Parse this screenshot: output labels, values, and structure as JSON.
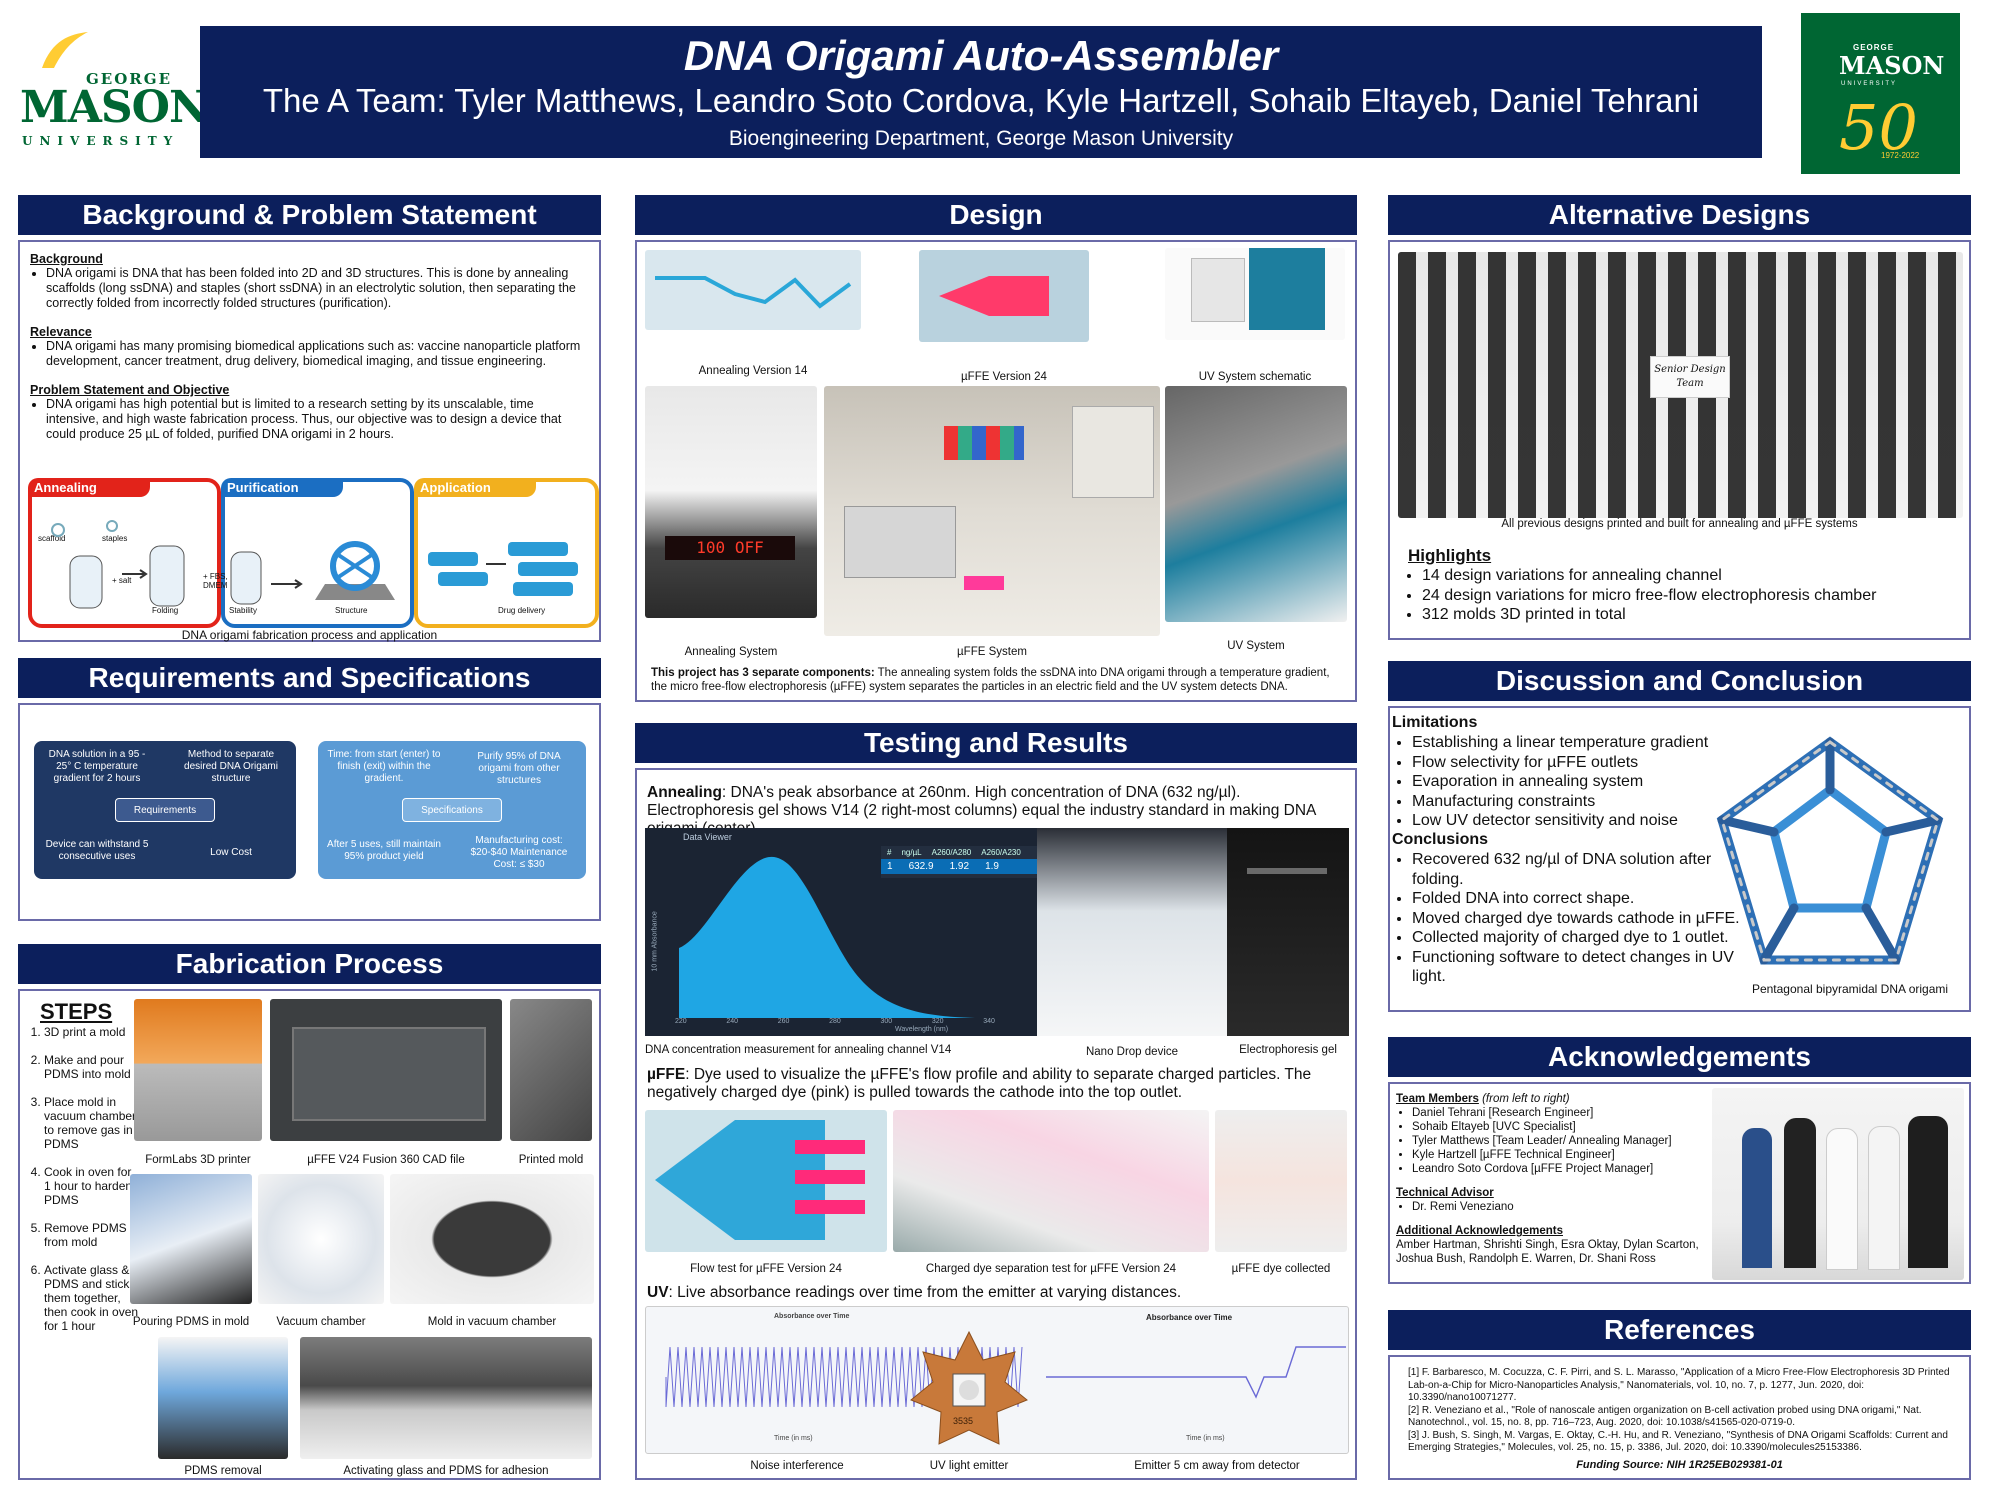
{
  "header": {
    "title": "DNA Origami Auto-Assembler",
    "team": "The A Team: Tyler Matthews, Leandro Soto Cordova, Kyle Hartzell, Sohaib Eltayeb, Daniel Tehrani",
    "department": "Bioengineering Department, George Mason University"
  },
  "logo_left": {
    "george": "GEORGE",
    "mason": "MASON",
    "university": "UNIVERSITY"
  },
  "logo_right": {
    "george": "GEORGE",
    "mason": "MASON",
    "university": "UNIVERSITY",
    "fifty": "50",
    "years": "1972-2022"
  },
  "background": {
    "title": "Background & Problem Statement",
    "bg_head": "Background",
    "bg_text": "DNA origami is DNA that has been folded into 2D and 3D structures. This is done by annealing scaffolds (long ssDNA) and staples (short ssDNA) in an electrolytic solution, then separating the correctly folded from incorrectly folded structures (purification).",
    "rel_head": "Relevance",
    "rel_text": "DNA origami has many promising biomedical applications such as: vaccine nanoparticle platform development, cancer treatment, drug delivery, biomedical imaging, and tissue engineering.",
    "ps_head": "Problem Statement and Objective",
    "ps_text": "DNA origami has high potential but is limited to a research setting by its unscalable, time intensive, and high waste fabrication process. Thus, our objective was to design a device that could produce 25 µL of folded, purified DNA origami in 2 hours.",
    "panels": [
      "Annealing",
      "Purification",
      "Application"
    ],
    "panel_labels": [
      "scaffold",
      "staples",
      "+ salt",
      "Folding",
      "+ FBS, DMEM",
      "Stability",
      "Structure",
      "Drug delivery"
    ],
    "caption": "DNA origami fabrication process and application"
  },
  "requirements": {
    "title": "Requirements and Specifications",
    "req_center": "Requirements",
    "req_items": [
      "DNA solution in a 95 - 25° C temperature gradient for 2 hours",
      "Method to separate desired DNA Origami structure",
      "Device can withstand 5 consecutive uses",
      "Low Cost"
    ],
    "spec_center": "Specifications",
    "spec_items": [
      "Time: from start (enter) to finish (exit) within the gradient.",
      "Purify 95% of DNA origami from other structures",
      "After 5 uses, still maintain 95% product yield",
      "Manufacturing cost: $20-$40 Maintenance Cost: ≤ $30"
    ]
  },
  "fabrication": {
    "title": "Fabrication Process",
    "steps_head": "STEPS",
    "steps": [
      "3D print a mold",
      "Make and pour PDMS into mold",
      "Place mold in vacuum chamber to remove gas in PDMS",
      "Cook in oven for 1 hour to harden PDMS",
      "Remove PDMS from mold",
      "Activate glass & PDMS and stick them together, then cook in oven for 1 hour"
    ],
    "captions": [
      "FormLabs 3D printer",
      "µFFE V24 Fusion 360 CAD file",
      "Printed mold",
      "Pouring PDMS in mold",
      "Vacuum chamber",
      "Mold in vacuum chamber",
      "PDMS removal",
      "Activating glass and PDMS for adhesion"
    ]
  },
  "design": {
    "title": "Design",
    "captions": [
      "Annealing Version 14",
      "µFFE Version 24",
      "UV System schematic",
      "Annealing System",
      "µFFE System",
      "UV System"
    ],
    "hotplate_display": "100  OFF",
    "note_bold": "This project has 3 separate components:",
    "note_text": " The annealing system folds the ssDNA into DNA origami through a temperature gradient, the micro free-flow electrophoresis (µFFE) system separates the particles in an electric field and the UV system detects DNA."
  },
  "testing": {
    "title": "Testing and Results",
    "annealing_bold": "Annealing",
    "annealing_text": ": DNA's peak absorbance at 260nm. High concentration of DNA (632 ng/µl). Electrophoresis gel shows V14 (2 right-most columns) equal the industry standard in making DNA origami (center).",
    "nanodrop": {
      "app": "Data Viewer",
      "cols": [
        "#",
        "ng/µL",
        "A260/A280",
        "A260/A230"
      ],
      "row": [
        "1",
        "632.9",
        "1.92",
        "1.9"
      ],
      "xlabel": "Wavelength (nm)",
      "ylabel": "10 mm Absorbance",
      "ticks": [
        "220",
        "240",
        "260",
        "280",
        "300",
        "320",
        "340"
      ]
    },
    "annealing_captions": [
      "DNA concentration measurement for annealing channel V14",
      "Nano Drop device",
      "Electrophoresis gel"
    ],
    "uffe_bold": "µFFE",
    "uffe_text": ": Dye used to visualize the µFFE's flow profile and ability to separate charged particles. The negatively charged dye (pink) is pulled towards the cathode into the top outlet.",
    "uffe_captions": [
      "Flow test for µFFE Version 24",
      "Charged dye separation test for µFFE Version 24",
      "µFFE dye collected"
    ],
    "uv_bold": "UV",
    "uv_text": ": Live absorbance readings over time from the emitter at varying distances.",
    "uv_chart_title": "Absorbance over Time",
    "uv_chart_xlabel": "Time (in ms)",
    "led_code": "3535",
    "uv_captions": [
      "Noise interference",
      "UV light emitter",
      "Emitter 5 cm away from detector"
    ]
  },
  "alternative": {
    "title": "Alternative Designs",
    "card_text": "Senior Design Team",
    "caption": "All previous designs printed and built for annealing and µFFE systems",
    "highlights_head": "Highlights",
    "highlights": [
      "14 design variations for annealing channel",
      "24 design variations for micro free-flow electrophoresis chamber",
      "312 molds 3D printed in total"
    ]
  },
  "discussion": {
    "title": "Discussion and Conclusion",
    "lim_head": "Limitations",
    "limitations": [
      "Establishing a linear temperature gradient",
      "Flow selectivity for µFFE outlets",
      "Evaporation in annealing system",
      "Manufacturing constraints",
      "Low UV detector sensitivity and noise"
    ],
    "con_head": "Conclusions",
    "conclusions": [
      "Recovered 632 ng/µl of DNA solution after folding.",
      "Folded DNA into correct shape.",
      "Moved charged dye towards cathode in µFFE.",
      "Collected majority of charged dye to 1 outlet.",
      "Functioning software to detect changes in UV light."
    ],
    "image_caption": "Pentagonal bipyramidal DNA origami"
  },
  "acknowledgements": {
    "title": "Acknowledgements",
    "team_head": "Team Members",
    "team_note": " (from left to right)",
    "team": [
      "Daniel Tehrani [Research Engineer]",
      "Sohaib Eltayeb [UVC Specialist]",
      "Tyler Matthews [Team Leader/ Annealing Manager]",
      "Kyle Hartzell [µFFE Technical Engineer]",
      "Leandro Soto Cordova [µFFE Project Manager]"
    ],
    "advisor_head": "Technical Advisor",
    "advisor": "Dr. Remi Veneziano",
    "additional_head": "Additional Acknowledgements",
    "additional": "Amber Hartman, Shrishti Singh, Esra Oktay, Dylan Scarton, Joshua Bush, Randolph E. Warren, Dr. Shani Ross"
  },
  "references": {
    "title": "References",
    "items": [
      "[1]  F. Barbaresco, M. Cocuzza, C. F. Pirri, and S. L. Marasso, \"Application of a Micro Free-Flow Electrophoresis 3D Printed Lab-on-a-Chip for Micro-Nanoparticles Analysis,\" Nanomaterials, vol. 10, no. 7, p. 1277, Jun. 2020, doi: 10.3390/nano10071277.",
      "[2]  R. Veneziano et al., \"Role of nanoscale antigen organization on B-cell activation probed using DNA origami,\" Nat. Nanotechnol., vol. 15, no. 8, pp. 716–723, Aug. 2020, doi: 10.1038/s41565-020-0719-0.",
      "[3]  J. Bush, S. Singh, M. Vargas, E. Oktay, C.-H. Hu, and R. Veneziano, \"Synthesis of DNA Origami Scaffolds: Current and Emerging Strategies,\" Molecules, vol. 25, no. 15, p. 3386, Jul. 2020, doi: 10.3390/molecules25153386."
    ],
    "funding": "Funding Source: NIH 1R25EB029381-01"
  },
  "colors": {
    "navy": "#0c1f5c",
    "mason_green": "#006633",
    "mason_gold": "#ffcc33",
    "border": "#6a6aa8"
  }
}
